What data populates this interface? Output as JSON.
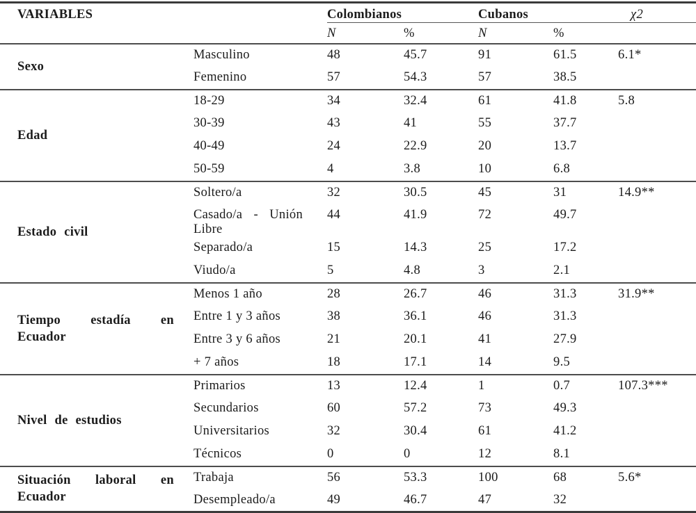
{
  "colors": {
    "background": "#ffffff",
    "text": "#1b1b1b",
    "rule_heavy": "#3a3a3a",
    "rule_light": "#4c4c4c"
  },
  "table": {
    "header": {
      "variables": "VARIABLES",
      "group1": "Colombianos",
      "group2": "Cubanos",
      "chi": "χ2",
      "n": "N",
      "pct": "%"
    },
    "sections": [
      {
        "label": "Sexo",
        "rows": [
          {
            "category": "Masculino",
            "n1": "48",
            "p1": "45.7",
            "n2": "91",
            "p2": "61.5",
            "chi": "6.1*"
          },
          {
            "category": "Femenino",
            "n1": "57",
            "p1": "54.3",
            "n2": "57",
            "p2": "38.5",
            "chi": ""
          }
        ]
      },
      {
        "label": "Edad",
        "rows": [
          {
            "category": "18-29",
            "n1": "34",
            "p1": "32.4",
            "n2": "61",
            "p2": "41.8",
            "chi": "5.8"
          },
          {
            "category": "30-39",
            "n1": "43",
            "p1": "41",
            "n2": "55",
            "p2": "37.7",
            "chi": ""
          },
          {
            "category": "40-49",
            "n1": "24",
            "p1": "22.9",
            "n2": "20",
            "p2": "13.7",
            "chi": ""
          },
          {
            "category": "50-59",
            "n1": "4",
            "p1": "3.8",
            "n2": "10",
            "p2": "6.8",
            "chi": ""
          }
        ]
      },
      {
        "label": "Estado civil",
        "rows": [
          {
            "category": "Soltero/a",
            "n1": "32",
            "p1": "30.5",
            "n2": "45",
            "p2": "31",
            "chi": "14.9**"
          },
          {
            "category": "Casado/a - Unión Libre",
            "n1": "44",
            "p1": "41.9",
            "n2": "72",
            "p2": "49.7",
            "chi": ""
          },
          {
            "category": "Separado/a",
            "n1": "15",
            "p1": "14.3",
            "n2": "25",
            "p2": "17.2",
            "chi": ""
          },
          {
            "category": "Viudo/a",
            "n1": "5",
            "p1": "4.8",
            "n2": "3",
            "p2": "2.1",
            "chi": ""
          }
        ]
      },
      {
        "label": "Tiempo estadía en Ecuador",
        "rows": [
          {
            "category": "Menos 1 año",
            "n1": "28",
            "p1": "26.7",
            "n2": "46",
            "p2": "31.3",
            "chi": "31.9**"
          },
          {
            "category": "Entre 1 y 3 años",
            "n1": "38",
            "p1": "36.1",
            "n2": "46",
            "p2": "31.3",
            "chi": ""
          },
          {
            "category": "Entre 3 y 6 años",
            "n1": "21",
            "p1": "20.1",
            "n2": "41",
            "p2": "27.9",
            "chi": ""
          },
          {
            "category": "+ 7 años",
            "n1": "18",
            "p1": "17.1",
            "n2": "14",
            "p2": "9.5",
            "chi": ""
          }
        ]
      },
      {
        "label": "Nivel de estudios",
        "rows": [
          {
            "category": "Primarios",
            "n1": "13",
            "p1": "12.4",
            "n2": "1",
            "p2": "0.7",
            "chi": "107.3***"
          },
          {
            "category": "Secundarios",
            "n1": "60",
            "p1": "57.2",
            "n2": "73",
            "p2": "49.3",
            "chi": ""
          },
          {
            "category": "Universitarios",
            "n1": "32",
            "p1": "30.4",
            "n2": "61",
            "p2": "41.2",
            "chi": ""
          },
          {
            "category": "Técnicos",
            "n1": "0",
            "p1": "0",
            "n2": "12",
            "p2": "8.1",
            "chi": ""
          }
        ]
      },
      {
        "label": "Situación laboral en Ecuador",
        "rows": [
          {
            "category": "Trabaja",
            "n1": "56",
            "p1": "53.3",
            "n2": "100",
            "p2": "68",
            "chi": "5.6*"
          },
          {
            "category": "Desempleado/a",
            "n1": "49",
            "p1": "46.7",
            "n2": "47",
            "p2": "32",
            "chi": ""
          }
        ]
      }
    ]
  }
}
